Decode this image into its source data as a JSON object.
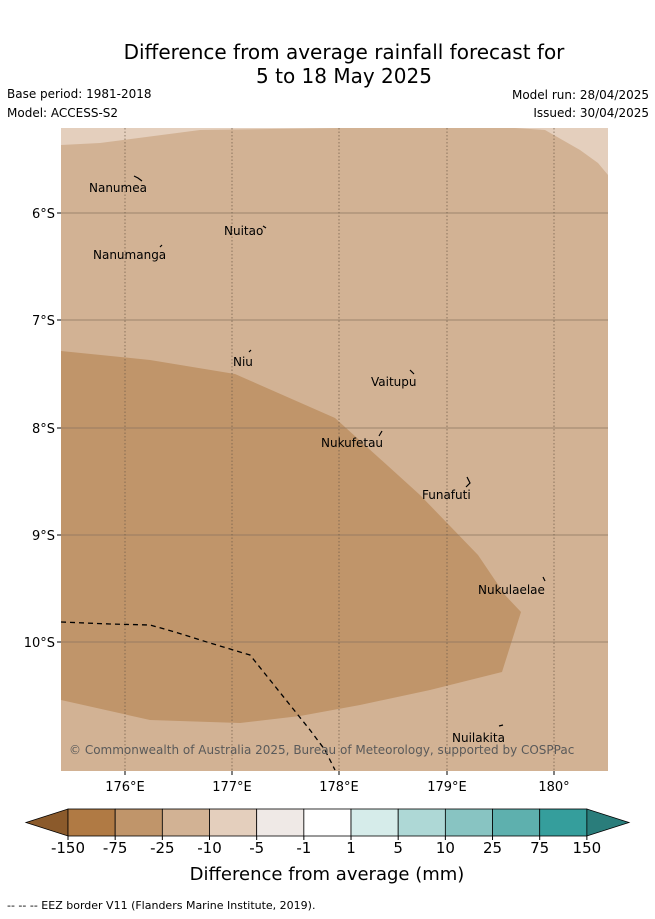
{
  "header": {
    "title_line1": "Difference from average rainfall forecast for",
    "title_line2": "5 to 18 May 2025",
    "base_period": "Base period: 1981-2018",
    "model": "Model: ACCESS-S2",
    "model_run": "Model run: 28/04/2025",
    "issued": "Issued: 30/04/2025"
  },
  "map": {
    "lat_labels": [
      "6°S",
      "7°S",
      "8°S",
      "9°S",
      "10°S"
    ],
    "lon_labels": [
      "176°E",
      "177°E",
      "178°E",
      "179°E",
      "180°"
    ],
    "places": [
      {
        "key": "nanumea",
        "name": "Nanumea"
      },
      {
        "key": "nuitao",
        "name": "Nuitao"
      },
      {
        "key": "nanumanga",
        "name": "Nanumanga"
      },
      {
        "key": "niu",
        "name": "Niu"
      },
      {
        "key": "vaitupu",
        "name": "Vaitupu"
      },
      {
        "key": "nukufetau",
        "name": "Nukufetau"
      },
      {
        "key": "funafuti",
        "name": "Funafuti"
      },
      {
        "key": "nukulaelae",
        "name": "Nukulaelae"
      },
      {
        "key": "nuilakita",
        "name": "Nuilakita"
      }
    ],
    "copyright": "© Commonwealth of Australia 2025, Bureau of Meteorology, supported by COSPPac"
  },
  "colorbar": {
    "title": "Difference from average (mm)",
    "ticks": [
      "-150",
      "-75",
      "-25",
      "-10",
      "-5",
      "-1",
      "1",
      "5",
      "10",
      "25",
      "75",
      "150"
    ],
    "colors": [
      "#8b5a2b",
      "#b07a44",
      "#c0956a",
      "#d2b294",
      "#e4cfbd",
      "#efe9e6",
      "#ffffff",
      "#d6ecea",
      "#aed8d6",
      "#88c4c2",
      "#5eb0ae",
      "#359e9c",
      "#2a7d7b"
    ]
  },
  "legend": {
    "eez": "--  --  -- EEZ border V11 (Flanders Marine Institute, 2019)."
  }
}
